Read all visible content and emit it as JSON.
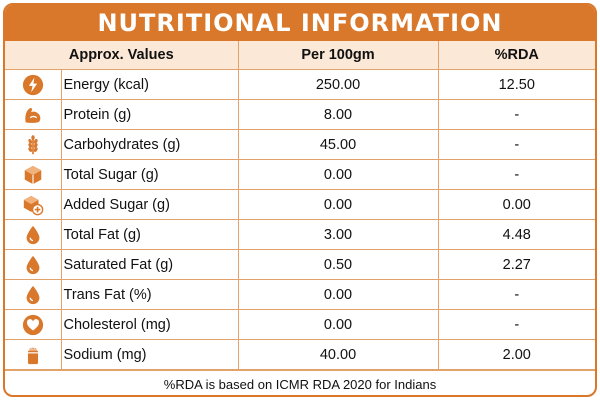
{
  "title": "NUTRITIONAL INFORMATION",
  "headers": [
    "Approx. Values",
    "Per 100gm",
    "%RDA"
  ],
  "accent": "#d9772a",
  "rows": [
    {
      "icon": "lightning-icon",
      "label": "Energy (kcal)",
      "per100": "250.00",
      "rda": "12.50"
    },
    {
      "icon": "muscle-icon",
      "label": "Protein (g)",
      "per100": "8.00",
      "rda": "-"
    },
    {
      "icon": "wheat-icon",
      "label": "Carbohydrates (g)",
      "per100": "45.00",
      "rda": "-"
    },
    {
      "icon": "sugar-cube-icon",
      "label": "Total Sugar (g)",
      "per100": "0.00",
      "rda": "-"
    },
    {
      "icon": "added-sugar-icon",
      "label": "Added Sugar (g)",
      "per100": "0.00",
      "rda": "0.00"
    },
    {
      "icon": "drop-icon",
      "label": "Total Fat (g)",
      "per100": "3.00",
      "rda": "4.48"
    },
    {
      "icon": "drop-icon",
      "label": "Saturated Fat (g)",
      "per100": "0.50",
      "rda": "2.27"
    },
    {
      "icon": "drop-icon",
      "label": "Trans Fat (%)",
      "per100": "0.00",
      "rda": "-"
    },
    {
      "icon": "heart-icon",
      "label": "Cholesterol (mg)",
      "per100": "0.00",
      "rda": "-"
    },
    {
      "icon": "salt-shaker-icon",
      "label": "Sodium (mg)",
      "per100": "40.00",
      "rda": "2.00"
    }
  ],
  "footer": "%RDA is based on ICMR RDA 2020 for Indians"
}
